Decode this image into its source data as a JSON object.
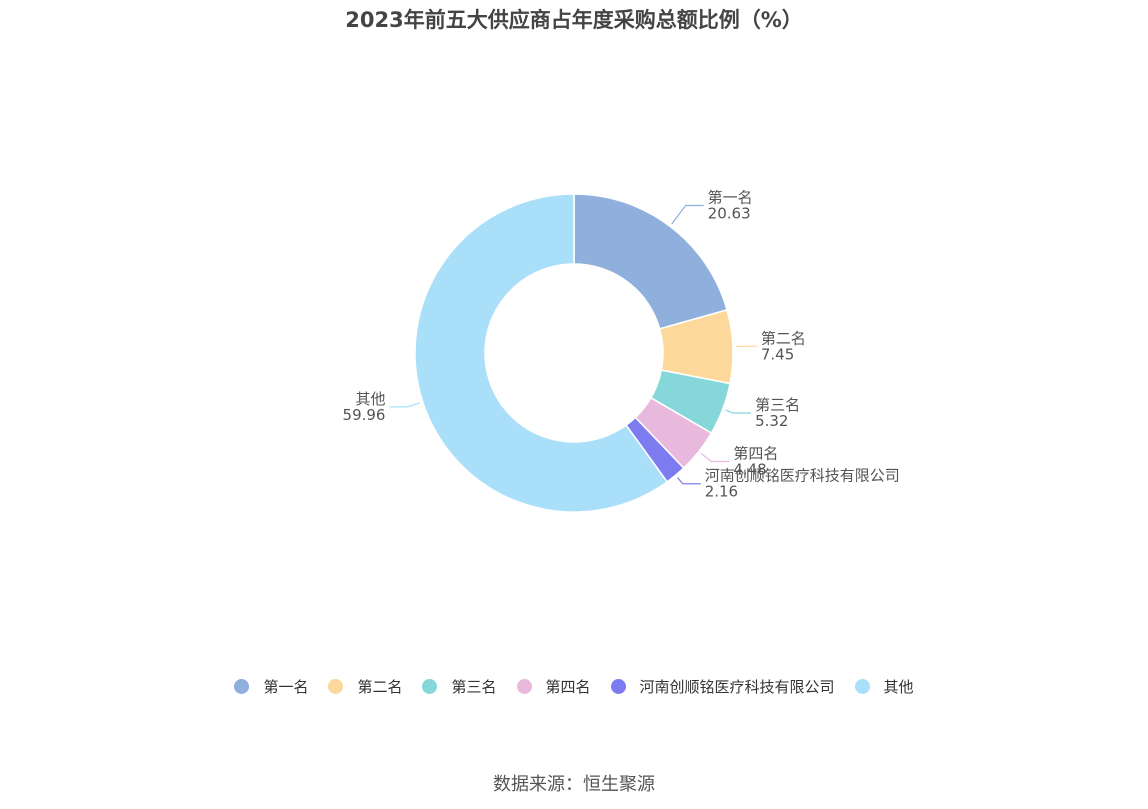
{
  "chart_data": {
    "type": "pie",
    "title": "2023年前五大供应商占年度采购总额比例（%）",
    "donut": true,
    "categories": [
      "第一名",
      "第二名",
      "第三名",
      "第四名",
      "河南创顺铭医疗科技有限公司",
      "其他"
    ],
    "values": [
      20.63,
      7.45,
      5.32,
      4.48,
      2.16,
      59.96
    ],
    "value_labels": [
      "20.63",
      "7.45",
      "5.32",
      "4.48",
      "2.16",
      "59.96"
    ],
    "colors": [
      "#8fb0dc",
      "#fdd89b",
      "#86d7da",
      "#e8b9dc",
      "#7c7cf0",
      "#a9dff9"
    ],
    "legend_position": "bottom"
  },
  "source": "数据来源：恒生聚源"
}
